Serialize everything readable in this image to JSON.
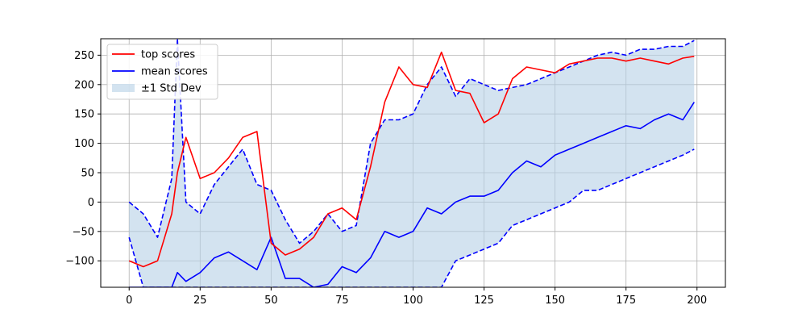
{
  "chart_data": {
    "type": "line",
    "title": "",
    "xlabel": "",
    "ylabel": "",
    "xlim": [
      -10,
      210
    ],
    "ylim": [
      -145,
      278
    ],
    "grid": true,
    "legend_position": "top-left",
    "x_ticks": [
      0,
      25,
      50,
      75,
      100,
      125,
      150,
      175,
      200
    ],
    "y_ticks": [
      -100,
      -50,
      0,
      50,
      100,
      150,
      200,
      250
    ],
    "x": [
      0,
      5,
      10,
      15,
      17,
      20,
      25,
      30,
      35,
      40,
      45,
      50,
      55,
      60,
      65,
      70,
      75,
      80,
      85,
      90,
      95,
      100,
      105,
      110,
      115,
      120,
      125,
      130,
      135,
      140,
      145,
      150,
      155,
      160,
      165,
      170,
      175,
      180,
      185,
      190,
      195,
      199
    ],
    "series": [
      {
        "name": "top scores",
        "color": "#ff0000",
        "style": "solid",
        "values": [
          -100,
          -110,
          -100,
          -20,
          50,
          110,
          40,
          50,
          75,
          110,
          120,
          -70,
          -90,
          -80,
          -60,
          -20,
          -10,
          -30,
          60,
          170,
          230,
          200,
          195,
          255,
          190,
          185,
          135,
          150,
          210,
          230,
          225,
          220,
          235,
          240,
          245,
          245,
          240,
          245,
          240,
          235,
          245,
          248
        ]
      },
      {
        "name": "mean scores",
        "color": "#0000ff",
        "style": "solid",
        "values": [
          -145,
          -145,
          -145,
          -145,
          -120,
          -135,
          -120,
          -95,
          -85,
          -100,
          -115,
          -60,
          -130,
          -130,
          -145,
          -140,
          -110,
          -120,
          -95,
          -50,
          -60,
          -50,
          -10,
          -20,
          0,
          10,
          10,
          20,
          50,
          70,
          60,
          80,
          90,
          100,
          110,
          120,
          130,
          125,
          140,
          150,
          140,
          170
        ]
      },
      {
        "name": "±1 Std Dev upper",
        "color": "#0000ff",
        "style": "dashed",
        "values": [
          0,
          -20,
          -60,
          40,
          278,
          0,
          -20,
          30,
          60,
          90,
          30,
          20,
          -30,
          -70,
          -50,
          -20,
          -50,
          -40,
          100,
          140,
          140,
          150,
          200,
          230,
          180,
          210,
          200,
          190,
          195,
          200,
          210,
          220,
          230,
          240,
          250,
          255,
          250,
          260,
          260,
          265,
          265,
          275
        ]
      },
      {
        "name": "±1 Std Dev lower",
        "color": "#0000ff",
        "style": "dashed",
        "values": [
          -60,
          -145,
          -145,
          -145,
          -145,
          -145,
          -145,
          -145,
          -145,
          -145,
          -145,
          -145,
          -145,
          -145,
          -145,
          -145,
          -145,
          -145,
          -145,
          -145,
          -145,
          -145,
          -145,
          -145,
          -100,
          -90,
          -80,
          -70,
          -40,
          -30,
          -20,
          -10,
          0,
          20,
          20,
          30,
          40,
          50,
          60,
          70,
          80,
          90
        ]
      }
    ],
    "legend": [
      {
        "label": "top scores",
        "kind": "line",
        "color": "#ff0000"
      },
      {
        "label": "mean scores",
        "kind": "line",
        "color": "#0000ff"
      },
      {
        "label": "±1 Std Dev",
        "kind": "patch",
        "color": "#b5d0e6"
      }
    ]
  }
}
